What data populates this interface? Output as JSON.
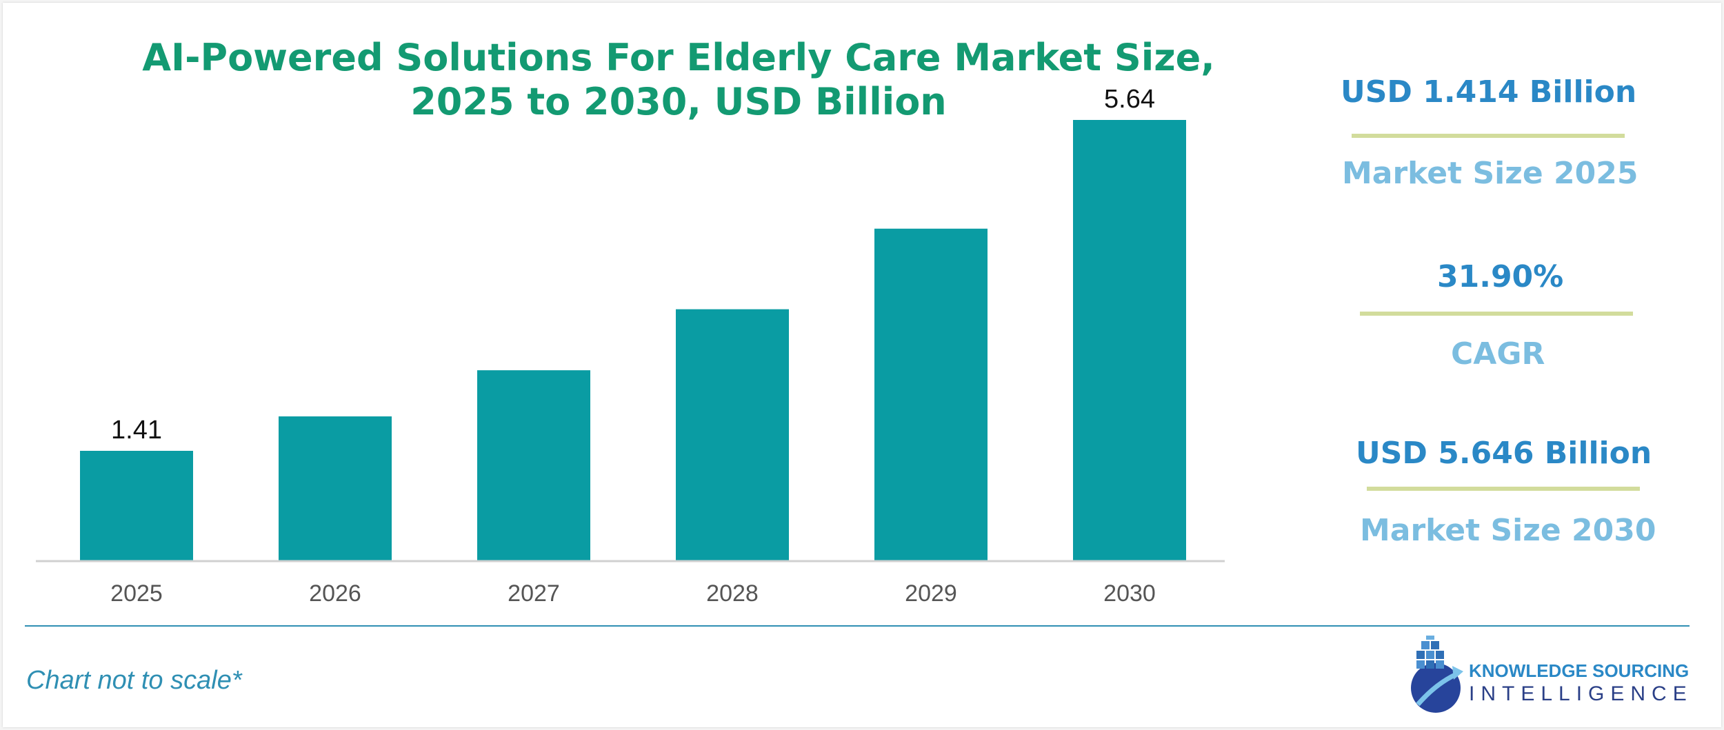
{
  "chart_data": {
    "type": "bar",
    "title": "AI-Powered Solutions For Elderly Care Market Size, 2025 to 2030, USD Billion",
    "title_lines": [
      "AI-Powered Solutions For Elderly Care Market Size,",
      "2025 to 2030, USD Billion"
    ],
    "categories": [
      "2025",
      "2026",
      "2027",
      "2028",
      "2029",
      "2030"
    ],
    "values": [
      1.41,
      1.85,
      2.44,
      3.22,
      4.25,
      5.64
    ],
    "data_labels": [
      "1.41",
      "",
      "",
      "",
      "",
      "5.64"
    ],
    "ylim": [
      0,
      6
    ],
    "xlabel": "",
    "ylabel": "",
    "grid": false,
    "bar_color": "#0a9ca3",
    "title_color": "#139a72"
  },
  "kpis": [
    {
      "value": "USD 1.414 Billion",
      "label": "Market Size 2025"
    },
    {
      "value": "31.90%",
      "label": "CAGR"
    },
    {
      "value": "USD 5.646 Billion",
      "label": "Market Size 2030"
    }
  ],
  "footnote": "Chart not to scale*",
  "logo": {
    "top": "KNOWLEDGE SOURCING",
    "bottom": "INTELLIGENCE"
  },
  "colors": {
    "kpi_value": "#2a88c6",
    "kpi_label": "#7bbde0",
    "kpi_divider": "#d2dc9c",
    "footer_line": "#2f8fb3"
  }
}
